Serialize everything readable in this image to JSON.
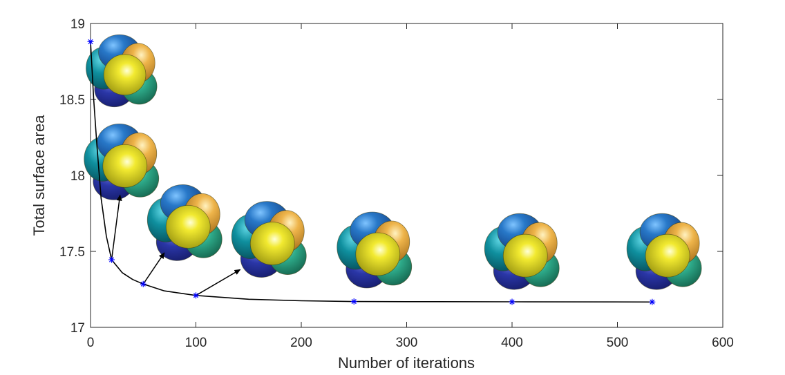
{
  "chart_data": {
    "type": "line",
    "title": "",
    "xlabel": "Number of iterations",
    "ylabel": "Total surface area",
    "xlim": [
      0,
      600
    ],
    "ylim": [
      17,
      19
    ],
    "xticks": [
      0,
      100,
      200,
      300,
      400,
      500,
      600
    ],
    "xtick_labels": [
      "0",
      "100",
      "200",
      "300",
      "400",
      "500",
      "600"
    ],
    "yticks": [
      17,
      17.5,
      18,
      18.5,
      19
    ],
    "ytick_labels": [
      "17",
      "17.5",
      "18",
      "18.5",
      "19"
    ],
    "grid": false,
    "line_color": "#000000",
    "marker_color": "#0000ff",
    "marker": "asterisk",
    "markers": [
      {
        "x": 0,
        "y": 18.88
      },
      {
        "x": 20,
        "y": 17.445
      },
      {
        "x": 50,
        "y": 17.285
      },
      {
        "x": 100,
        "y": 17.21
      },
      {
        "x": 250,
        "y": 17.17
      },
      {
        "x": 400,
        "y": 17.168
      },
      {
        "x": 533,
        "y": 17.167
      }
    ],
    "curve": [
      {
        "x": 0,
        "y": 18.88
      },
      {
        "x": 3,
        "y": 18.5
      },
      {
        "x": 6,
        "y": 18.2
      },
      {
        "x": 10,
        "y": 17.85
      },
      {
        "x": 15,
        "y": 17.6
      },
      {
        "x": 20,
        "y": 17.445
      },
      {
        "x": 30,
        "y": 17.36
      },
      {
        "x": 40,
        "y": 17.315
      },
      {
        "x": 50,
        "y": 17.285
      },
      {
        "x": 70,
        "y": 17.24
      },
      {
        "x": 100,
        "y": 17.21
      },
      {
        "x": 150,
        "y": 17.185
      },
      {
        "x": 200,
        "y": 17.175
      },
      {
        "x": 250,
        "y": 17.17
      },
      {
        "x": 300,
        "y": 17.169
      },
      {
        "x": 400,
        "y": 17.168
      },
      {
        "x": 533,
        "y": 17.167
      }
    ],
    "arrows": [
      {
        "from": {
          "x": 20,
          "y": 17.445
        },
        "to": {
          "x": 28,
          "y": 17.87
        }
      },
      {
        "from": {
          "x": 50,
          "y": 17.285
        },
        "to": {
          "x": 70,
          "y": 17.49
        }
      },
      {
        "from": {
          "x": 100,
          "y": 17.21
        },
        "to": {
          "x": 142,
          "y": 17.38
        }
      }
    ],
    "cluster_images": [
      {
        "name": "cluster-iter-0",
        "x": 30,
        "y": 18.68,
        "scale": 0.95
      },
      {
        "name": "cluster-iter-20",
        "x": 30,
        "y": 18.08,
        "scale": 1.0
      },
      {
        "name": "cluster-iter-50",
        "x": 90,
        "y": 17.68,
        "scale": 1.0
      },
      {
        "name": "cluster-iter-100",
        "x": 170,
        "y": 17.57,
        "scale": 1.0
      },
      {
        "name": "cluster-iter-250",
        "x": 270,
        "y": 17.5,
        "scale": 1.0
      },
      {
        "name": "cluster-iter-400",
        "x": 410,
        "y": 17.49,
        "scale": 1.0
      },
      {
        "name": "cluster-iter-533",
        "x": 545,
        "y": 17.49,
        "scale": 1.0
      }
    ],
    "cell_colors": [
      "#2a3aa8",
      "#1f6fc0",
      "#0e8f9e",
      "#2eab8a",
      "#e5a52e",
      "#d6cf1a"
    ]
  }
}
